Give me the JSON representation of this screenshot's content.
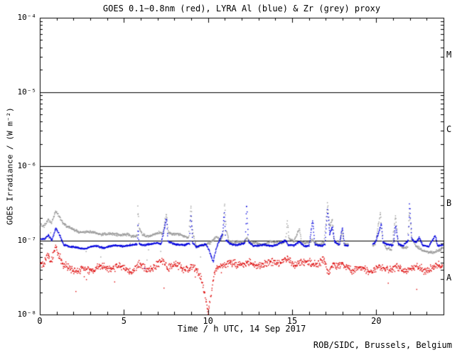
{
  "footer": {
    "text": "ROB/SIDC, Brussels, Belgium"
  },
  "chart_data": {
    "type": "scatter",
    "title": "GOES 0.1−0.8nm (red), LYRA Al (blue) & Zr (grey) proxy",
    "xlabel": "Time / h UTC, 14 Sep 2017",
    "ylabel": "GOES Irradiance / (W m⁻²)",
    "x_range_hours": [
      0,
      24
    ],
    "y_range": [
      1e-08,
      0.0001
    ],
    "y_scale": "log",
    "grid": false,
    "background": "#ffffff",
    "axis_color": "#000000",
    "x_ticks": [
      0,
      5,
      10,
      15,
      20
    ],
    "x_minor_tick_step": 1,
    "y_tick_exponents": [
      -4,
      -5,
      -6,
      -7,
      -8
    ],
    "y_tick_labels": [
      "10⁻⁴",
      "10⁻⁵",
      "10⁻⁶",
      "10⁻⁷",
      "10⁻⁸"
    ],
    "hlines": [
      1e-05,
      1e-06,
      1e-07
    ],
    "flare_classes": [
      {
        "label": "M",
        "value": 3.16e-05
      },
      {
        "label": "C",
        "value": 3.16e-06
      },
      {
        "label": "B",
        "value": 3.16e-07
      },
      {
        "label": "A",
        "value": 3.16e-08
      }
    ],
    "series": [
      {
        "name": "LYRA Zr proxy",
        "color": "#9a9a9a",
        "jitter_dec": 0.022,
        "wobble_dec": 0.012,
        "outlier_p": 0.012,
        "step_h": 0.018,
        "segments": [
          [
            [
              0,
              1.7e-07
            ],
            [
              0.25,
              1.6e-07
            ],
            [
              0.5,
              1.9e-07
            ],
            [
              0.68,
              1.65e-07
            ],
            [
              0.93,
              2.5e-07
            ],
            [
              1.05,
              2.3e-07
            ],
            [
              1.3,
              1.8e-07
            ],
            [
              1.6,
              1.5e-07
            ],
            [
              2.0,
              1.38e-07
            ],
            [
              2.4,
              1.3e-07
            ],
            [
              2.8,
              1.28e-07
            ],
            [
              3.2,
              1.32e-07
            ],
            [
              3.6,
              1.22e-07
            ],
            [
              4.0,
              1.2e-07
            ],
            [
              4.4,
              1.24e-07
            ],
            [
              4.8,
              1.16e-07
            ],
            [
              5.2,
              1.18e-07
            ],
            [
              5.55,
              1.14e-07
            ],
            [
              5.78,
              1.2e-07
            ],
            [
              5.83,
              2.9e-07
            ],
            [
              5.9,
              1.5e-07
            ],
            [
              6.1,
              1.18e-07
            ],
            [
              6.5,
              1.15e-07
            ],
            [
              6.85,
              1.25e-07
            ],
            [
              7.1,
              1.3e-07
            ],
            [
              7.3,
              1.2e-07
            ],
            [
              7.52,
              2.3e-07
            ],
            [
              7.62,
              1.3e-07
            ],
            [
              7.9,
              1.2e-07
            ],
            [
              8.2,
              1.2e-07
            ],
            [
              8.55,
              1.12e-07
            ],
            [
              8.85,
              1.1e-07
            ],
            [
              8.97,
              3.1e-07
            ],
            [
              9.08,
              1.3e-07
            ],
            [
              9.3,
              8.2e-08
            ],
            [
              9.7,
              8.8e-08
            ],
            [
              10.1,
              9.5e-08
            ],
            [
              10.5,
              1.1e-07
            ],
            [
              10.75,
              1e-07
            ],
            [
              10.9,
              1.2e-07
            ],
            [
              10.97,
              3.2e-07
            ],
            [
              11.07,
              1.4e-07
            ],
            [
              11.25,
              9.5e-08
            ],
            [
              11.55,
              9.2e-08
            ],
            [
              11.85,
              9.3e-08
            ],
            [
              12.15,
              9.6e-08
            ],
            [
              12.3,
              1.1e-07
            ],
            [
              12.5,
              9.3e-08
            ],
            [
              12.85,
              9.2e-08
            ],
            [
              13.25,
              9e-08
            ],
            [
              13.65,
              9.6e-08
            ],
            [
              14.05,
              9.3e-08
            ],
            [
              14.35,
              9.1e-08
            ],
            [
              14.62,
              1e-07
            ],
            [
              14.7,
              1.8e-07
            ],
            [
              14.8,
              1.02e-07
            ],
            [
              15.1,
              9.5e-08
            ],
            [
              15.42,
              1.45e-07
            ],
            [
              15.55,
              9.8e-08
            ],
            [
              15.9,
              9.2e-08
            ],
            [
              16.2,
              1e-07
            ],
            [
              16.55,
              9e-08
            ],
            [
              16.9,
              9.5e-08
            ],
            [
              17.1,
              3.2e-07
            ],
            [
              17.22,
              1.5e-07
            ],
            [
              17.38,
              1.9e-07
            ],
            [
              17.5,
              1e-07
            ],
            [
              17.75,
              8.8e-08
            ],
            [
              17.98,
              1.3e-07
            ],
            [
              18.1,
              8.7e-08
            ],
            [
              18.35,
              8.5e-08
            ]
          ],
          [
            [
              19.8,
              8.8e-08
            ],
            [
              19.95,
              9.5e-08
            ],
            [
              20.25,
              2.4e-07
            ],
            [
              20.35,
              1e-07
            ],
            [
              20.6,
              7.8e-08
            ],
            [
              20.9,
              7.5e-08
            ],
            [
              21.15,
              2.2e-07
            ],
            [
              21.3,
              8.8e-08
            ],
            [
              21.6,
              7.6e-08
            ],
            [
              21.85,
              8e-08
            ],
            [
              21.95,
              2.5e-07
            ],
            [
              22.1,
              1.1e-07
            ],
            [
              22.4,
              8.2e-08
            ],
            [
              22.7,
              7.5e-08
            ],
            [
              23.0,
              7.2e-08
            ],
            [
              23.4,
              7e-08
            ],
            [
              23.8,
              7.4e-08
            ],
            [
              24.0,
              7.8e-08
            ]
          ]
        ]
      },
      {
        "name": "LYRA Al proxy",
        "color": "#0000dd",
        "jitter_dec": 0.014,
        "wobble_dec": 0.008,
        "outlier_p": 0.004,
        "step_h": 0.017,
        "segments": [
          [
            [
              0,
              1.02e-07
            ],
            [
              0.3,
              1.06e-07
            ],
            [
              0.5,
              1.2e-07
            ],
            [
              0.7,
              1e-07
            ],
            [
              0.95,
              1.45e-07
            ],
            [
              1.1,
              1.25e-07
            ],
            [
              1.4,
              8.8e-08
            ],
            [
              1.8,
              8.2e-08
            ],
            [
              2.2,
              8e-08
            ],
            [
              2.6,
              7.9e-08
            ],
            [
              3.0,
              8.2e-08
            ],
            [
              3.4,
              8.4e-08
            ],
            [
              3.8,
              8e-08
            ],
            [
              4.2,
              8.2e-08
            ],
            [
              4.6,
              8.5e-08
            ],
            [
              5.0,
              8.4e-08
            ],
            [
              5.4,
              8.6e-08
            ],
            [
              5.78,
              9e-08
            ],
            [
              5.83,
              1.6e-07
            ],
            [
              5.9,
              9.2e-08
            ],
            [
              6.2,
              8.7e-08
            ],
            [
              6.6,
              8.9e-08
            ],
            [
              6.95,
              9.3e-08
            ],
            [
              7.2,
              8.9e-08
            ],
            [
              7.52,
              1.95e-07
            ],
            [
              7.62,
              9.5e-08
            ],
            [
              7.9,
              9e-08
            ],
            [
              8.25,
              8.8e-08
            ],
            [
              8.6,
              8.6e-08
            ],
            [
              8.9,
              9e-08
            ],
            [
              8.97,
              2.2e-07
            ],
            [
              9.08,
              9.5e-08
            ],
            [
              9.3,
              8.3e-08
            ],
            [
              9.6,
              8.7e-08
            ],
            [
              9.9,
              8.8e-08
            ],
            [
              10.15,
              6.5e-08
            ],
            [
              10.3,
              5.2e-08
            ],
            [
              10.45,
              7.5e-08
            ],
            [
              10.6,
              9.2e-08
            ],
            [
              10.85,
              1.2e-07
            ],
            [
              10.95,
              2.3e-07
            ],
            [
              11.05,
              1e-07
            ],
            [
              11.3,
              9e-08
            ],
            [
              11.6,
              8.7e-08
            ],
            [
              11.9,
              8.8e-08
            ],
            [
              12.2,
              9.2e-08
            ],
            [
              12.28,
              3.2e-07
            ],
            [
              12.4,
              9.6e-08
            ],
            [
              12.7,
              8.6e-08
            ],
            [
              13.0,
              8.5e-08
            ],
            [
              13.35,
              8.8e-08
            ],
            [
              13.7,
              8.5e-08
            ],
            [
              14.1,
              8.6e-08
            ],
            [
              14.6,
              1e-07
            ],
            [
              14.75,
              8.8e-08
            ],
            [
              15.1,
              8.5e-08
            ],
            [
              15.42,
              9.5e-08
            ],
            [
              15.7,
              8.5e-08
            ],
            [
              16.0,
              8.6e-08
            ],
            [
              16.22,
              1.9e-07
            ],
            [
              16.35,
              8.8e-08
            ],
            [
              16.7,
              8.5e-08
            ],
            [
              16.95,
              9e-08
            ],
            [
              17.1,
              2.6e-07
            ],
            [
              17.22,
              1.2e-07
            ],
            [
              17.38,
              1.5e-07
            ],
            [
              17.5,
              9.5e-08
            ],
            [
              17.8,
              8.6e-08
            ],
            [
              17.98,
              1.5e-07
            ],
            [
              18.1,
              8.6e-08
            ],
            [
              18.35,
              8.5e-08
            ]
          ],
          [
            [
              19.8,
              9e-08
            ],
            [
              19.95,
              9.5e-08
            ],
            [
              20.3,
              1.7e-07
            ],
            [
              20.4,
              9.5e-08
            ],
            [
              20.7,
              8.6e-08
            ],
            [
              21.0,
              8.5e-08
            ],
            [
              21.15,
              1.6e-07
            ],
            [
              21.3,
              9e-08
            ],
            [
              21.6,
              8.5e-08
            ],
            [
              21.9,
              1e-07
            ],
            [
              21.97,
              3.2e-07
            ],
            [
              22.1,
              1.05e-07
            ],
            [
              22.35,
              9.5e-08
            ],
            [
              22.55,
              1.12e-07
            ],
            [
              22.75,
              8.8e-08
            ],
            [
              23.1,
              8.2e-08
            ],
            [
              23.5,
              1.18e-07
            ],
            [
              23.65,
              8.5e-08
            ],
            [
              24.0,
              8.6e-08
            ]
          ]
        ]
      },
      {
        "name": "GOES 0.1-0.8nm",
        "color": "#dd0000",
        "jitter_dec": 0.06,
        "wobble_dec": 0.03,
        "outlier_p": 0.01,
        "step_h": 0.022,
        "segments": [
          [
            [
              0,
              5e-08
            ],
            [
              0.2,
              4.6e-08
            ],
            [
              0.45,
              6e-08
            ],
            [
              0.65,
              5e-08
            ],
            [
              0.95,
              8.1e-08
            ],
            [
              1.15,
              6e-08
            ],
            [
              1.4,
              4.4e-08
            ],
            [
              1.8,
              4.1e-08
            ],
            [
              2.3,
              4.1e-08
            ],
            [
              3.0,
              4.1e-08
            ],
            [
              3.5,
              4.4e-08
            ],
            [
              4.0,
              4.1e-08
            ],
            [
              4.5,
              4.3e-08
            ],
            [
              5.0,
              4.3e-08
            ],
            [
              5.5,
              4.1e-08
            ],
            [
              5.9,
              4.8e-08
            ],
            [
              6.2,
              4.3e-08
            ],
            [
              6.6,
              4.3e-08
            ],
            [
              7.0,
              4.5e-08
            ],
            [
              7.3,
              5e-08
            ],
            [
              7.6,
              4.3e-08
            ],
            [
              8.0,
              4.5e-08
            ],
            [
              8.5,
              4.2e-08
            ],
            [
              9.0,
              4.4e-08
            ],
            [
              9.3,
              4.1e-08
            ],
            [
              9.55,
              3.3e-08
            ],
            [
              9.75,
              2.2e-08
            ],
            [
              9.9,
              1.5e-08
            ],
            [
              10.0,
              1.05e-08
            ],
            [
              10.1,
              1.4e-08
            ],
            [
              10.25,
              2.4e-08
            ],
            [
              10.4,
              3.4e-08
            ],
            [
              10.55,
              4.3e-08
            ],
            [
              10.9,
              4.7e-08
            ],
            [
              11.2,
              4.8e-08
            ],
            [
              11.6,
              4.7e-08
            ],
            [
              12.0,
              5e-08
            ],
            [
              12.3,
              5.1e-08
            ],
            [
              12.7,
              4.8e-08
            ],
            [
              13.1,
              5e-08
            ],
            [
              13.5,
              4.8e-08
            ],
            [
              13.9,
              5e-08
            ],
            [
              14.3,
              5.1e-08
            ],
            [
              14.65,
              5.4e-08
            ],
            [
              15.0,
              4.9e-08
            ],
            [
              15.5,
              5.1e-08
            ],
            [
              16.0,
              5.2e-08
            ],
            [
              16.5,
              5e-08
            ],
            [
              16.9,
              5.3e-08
            ],
            [
              17.15,
              3.2e-08
            ],
            [
              17.35,
              4.6e-08
            ],
            [
              17.7,
              4.5e-08
            ],
            [
              18.1,
              4.4e-08
            ],
            [
              18.5,
              4.2e-08
            ],
            [
              19.0,
              4.3e-08
            ],
            [
              19.5,
              4e-08
            ],
            [
              20.0,
              4.2e-08
            ],
            [
              20.5,
              4e-08
            ],
            [
              21.0,
              4.2e-08
            ],
            [
              21.5,
              4e-08
            ],
            [
              22.0,
              4.3e-08
            ],
            [
              22.4,
              4.5e-08
            ],
            [
              22.8,
              4.2e-08
            ],
            [
              23.2,
              4.2e-08
            ],
            [
              23.6,
              4.4e-08
            ],
            [
              24.0,
              4.6e-08
            ]
          ]
        ]
      }
    ]
  }
}
